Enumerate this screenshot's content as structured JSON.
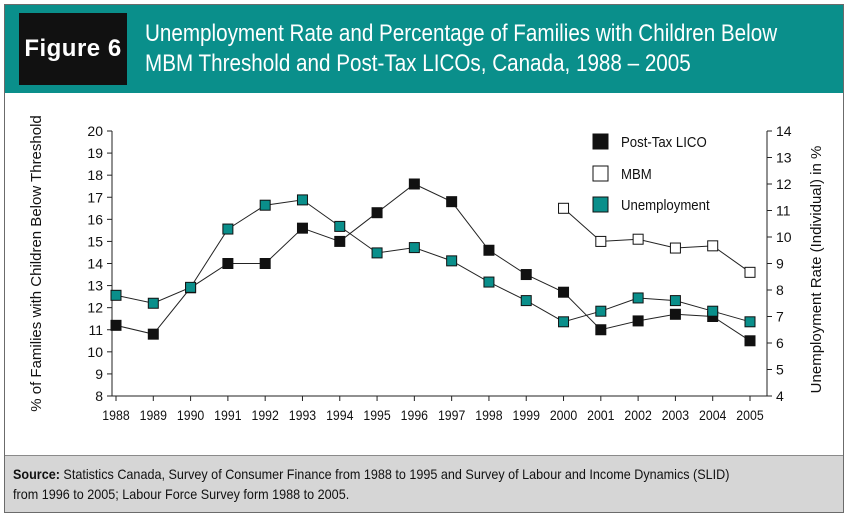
{
  "figure_label": "Figure 6",
  "title_line1": "Unemployment Rate and Percentage of Families with Children Below",
  "title_line2": "MBM Threshold and Post-Tax LICOs, Canada, 1988 – 2005",
  "source_label": "Source:",
  "source_line1": "Statistics Canada, Survey of Consumer Finance from 1988 to 1995 and Survey of Labour and Income Dynamics (SLID)",
  "source_line2": "from 1996 to 2005; Labour Force Survey form 1988 to 2005.",
  "colors": {
    "header": "#0a8f8b",
    "licosquare": "#111111",
    "mbm": "#ffffff",
    "unemployment": "#0a8f8b"
  },
  "chart_data": {
    "type": "line",
    "categories": [
      "1988",
      "1989",
      "1990",
      "1991",
      "1992",
      "1993",
      "1994",
      "1995",
      "1996",
      "1997",
      "1998",
      "1999",
      "2000",
      "2001",
      "2002",
      "2003",
      "2004",
      "2005"
    ],
    "ylabel_left": "% of Families with Children Below Threshold",
    "ylabel_right": "Unemployment Rate (Individual) in %",
    "ylim_left": [
      8,
      20
    ],
    "ylim_right": [
      4,
      14
    ],
    "yticks_left": [
      "8",
      "9",
      "10",
      "11",
      "12",
      "13",
      "14",
      "15",
      "16",
      "17",
      "18",
      "19",
      "20"
    ],
    "yticks_right": [
      "4",
      "5",
      "6",
      "7",
      "8",
      "9",
      "10",
      "11",
      "12",
      "13",
      "14"
    ],
    "legend": [
      {
        "name": "Post-Tax LICO",
        "marker": "filled-black-square"
      },
      {
        "name": "MBM",
        "marker": "open-square"
      },
      {
        "name": "Unemployment",
        "marker": "teal-square"
      }
    ],
    "series": [
      {
        "name": "Post-Tax LICO",
        "axis": "left",
        "values": [
          11.2,
          10.8,
          12.9,
          14.0,
          14.0,
          15.6,
          15.0,
          16.3,
          17.6,
          16.8,
          14.6,
          13.5,
          12.7,
          11.0,
          11.4,
          11.7,
          11.6,
          10.5
        ]
      },
      {
        "name": "MBM",
        "axis": "left",
        "values": [
          null,
          null,
          null,
          null,
          null,
          null,
          null,
          null,
          null,
          null,
          null,
          null,
          16.5,
          15.0,
          15.1,
          14.7,
          14.8,
          13.6
        ]
      },
      {
        "name": "Unemployment",
        "axis": "right",
        "values": [
          7.8,
          7.5,
          8.1,
          10.3,
          11.2,
          11.4,
          10.4,
          9.4,
          9.6,
          9.1,
          8.3,
          7.6,
          6.8,
          7.2,
          7.7,
          7.6,
          7.2,
          6.8
        ]
      }
    ]
  }
}
